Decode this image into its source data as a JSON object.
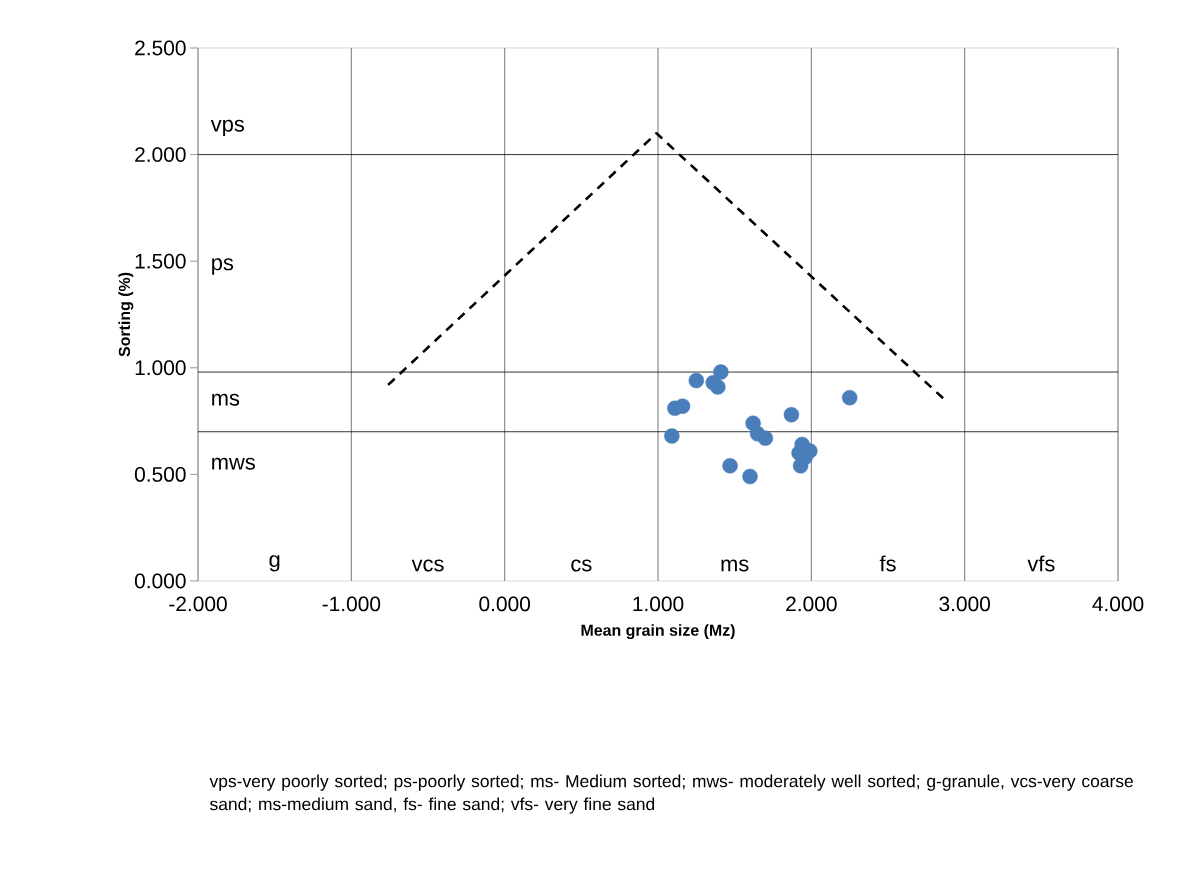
{
  "chart_data": {
    "type": "scatter",
    "xlabel": "Mean grain size (Mz)",
    "ylabel": "Sorting (%)",
    "xlim": [
      -2,
      4
    ],
    "ylim": [
      0,
      2.5
    ],
    "xticks": [
      {
        "value": -2,
        "label": "-2.000"
      },
      {
        "value": -1,
        "label": "-1.000"
      },
      {
        "value": 0,
        "label": "0.000"
      },
      {
        "value": 1,
        "label": "1.000"
      },
      {
        "value": 2,
        "label": "2.000"
      },
      {
        "value": 3,
        "label": "3.000"
      },
      {
        "value": 4,
        "label": "4.000"
      }
    ],
    "yticks": [
      {
        "value": 0,
        "label": "0.000"
      },
      {
        "value": 0.5,
        "label": "0.500"
      },
      {
        "value": 1,
        "label": "1.000"
      },
      {
        "value": 1.5,
        "label": "1.500"
      },
      {
        "value": 2,
        "label": "2.000"
      },
      {
        "value": 2.5,
        "label": "2.500"
      }
    ],
    "grid": "x",
    "series": [
      {
        "color": "#4a7ebb",
        "marker": "circle",
        "x": [
          1.41,
          1.25,
          1.36,
          1.39,
          1.11,
          1.16,
          1.09,
          1.62,
          1.65,
          1.7,
          1.87,
          2.25,
          1.94,
          1.99,
          1.92,
          1.96,
          1.93,
          1.47,
          1.6
        ],
        "values": [
          0.98,
          0.94,
          0.93,
          0.91,
          0.81,
          0.82,
          0.68,
          0.74,
          0.69,
          0.67,
          0.78,
          0.86,
          0.64,
          0.61,
          0.6,
          0.58,
          0.54,
          0.54,
          0.49
        ]
      },
      {
        "type": "line",
        "color": "#000000",
        "line_style": "dashed",
        "marker": "none",
        "x": [
          -0.76,
          0.99,
          2.87
        ],
        "values": [
          0.92,
          2.1,
          0.85
        ]
      }
    ],
    "ref_lines": [
      {
        "axis": "y",
        "value": 2.0,
        "color": "#000000"
      },
      {
        "axis": "y",
        "value": 0.98,
        "color": "#000000"
      },
      {
        "axis": "y",
        "value": 0.7,
        "color": "#000000"
      }
    ],
    "annotations": [
      "vps",
      "ps",
      "ms",
      "mws",
      "g",
      "vcs",
      "cs",
      "ms",
      "fs",
      "vfs",
      "vps-very poorly sorted; ps-poorly sorted; ms- Medium sorted; mws- moderately well sorted; g-granule, vcs-very coarse sand; ms-medium sand, fs- fine sand; vfs- very fine sand"
    ]
  }
}
